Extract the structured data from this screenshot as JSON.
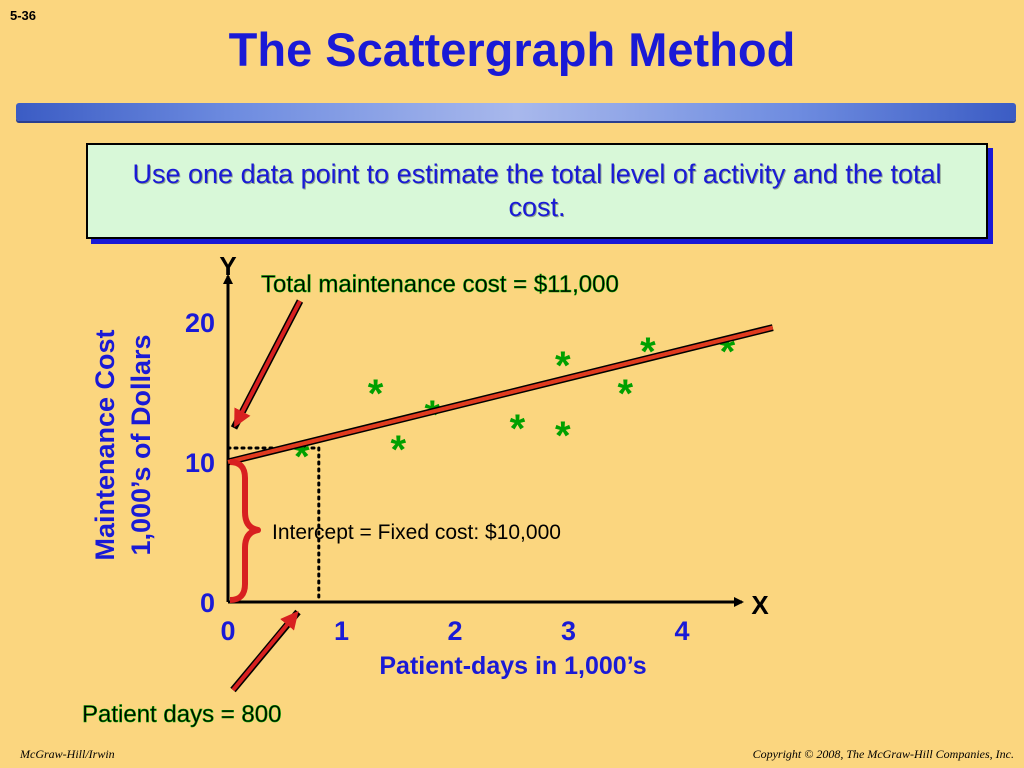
{
  "slide": {
    "number": "5-36",
    "title": "The Scattergraph Method",
    "callout": "Use one data point to estimate the total level of activity and the total cost.",
    "footer_left": "McGraw-Hill/Irwin",
    "footer_right": "Copyright © 2008, The McGraw-Hill Companies, Inc."
  },
  "annotations": {
    "total_cost": "Total maintenance cost = $11,000",
    "intercept": "Intercept = Fixed cost: $10,000",
    "patient_days": "Patient days = 800"
  },
  "colors": {
    "background": "#FBD67F",
    "title": "#1A1AD6",
    "points": "#00A000",
    "regression_line": "#E03A1E",
    "arrows": "#D82020"
  },
  "chart_data": {
    "type": "scatter",
    "x_axis_letter": "X",
    "y_axis_letter": "Y",
    "xlabel": "Patient-days in 1,000’s",
    "ylabel_lines": [
      "Maintenance Cost",
      "1,000’s of Dollars"
    ],
    "x_ticks": [
      0,
      1,
      2,
      3,
      4
    ],
    "y_ticks": [
      0,
      10,
      20
    ],
    "xlim": [
      0,
      4.8
    ],
    "ylim": [
      0,
      22
    ],
    "marker": "*",
    "points": [
      {
        "x": 0.65,
        "y": 11.0
      },
      {
        "x": 1.3,
        "y": 15.5
      },
      {
        "x": 1.5,
        "y": 11.5
      },
      {
        "x": 1.8,
        "y": 14.0
      },
      {
        "x": 2.55,
        "y": 13.0
      },
      {
        "x": 2.95,
        "y": 12.5
      },
      {
        "x": 2.95,
        "y": 17.5
      },
      {
        "x": 3.5,
        "y": 15.5
      },
      {
        "x": 3.7,
        "y": 18.5
      },
      {
        "x": 4.4,
        "y": 18.5
      }
    ],
    "regression_line": {
      "intercept": 10,
      "slope": 2.0,
      "x_end": 4.8
    },
    "highlight_point": {
      "x": 0.8,
      "y": 11
    }
  }
}
